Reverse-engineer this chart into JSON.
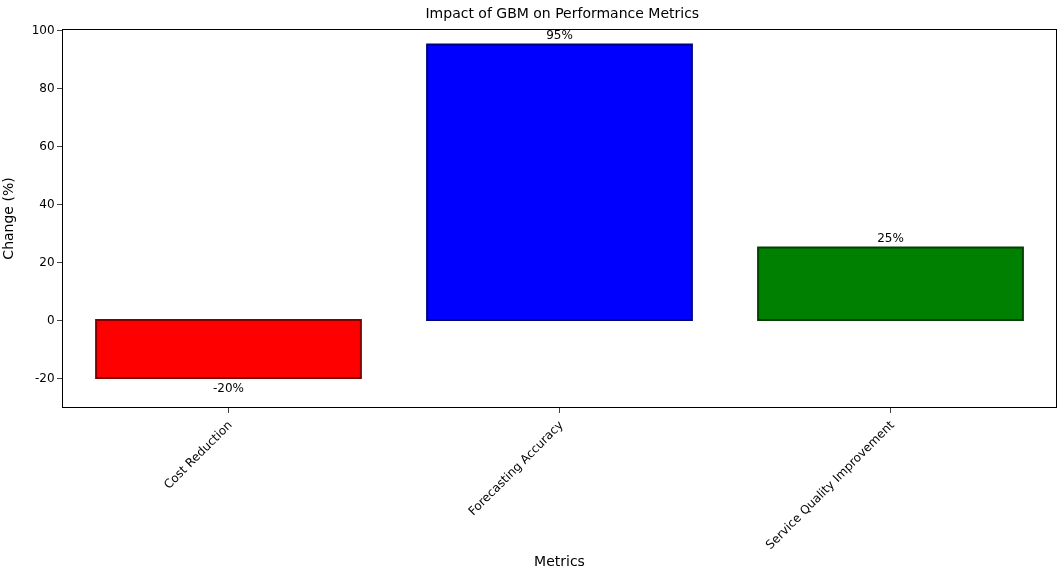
{
  "chart_data": {
    "type": "bar",
    "title": "Impact of GBM on Performance Metrics",
    "xlabel": "Metrics",
    "ylabel": "Change (%)",
    "categories": [
      "Cost Reduction",
      "Forecasting Accuracy",
      "Service Quality Improvement"
    ],
    "values": [
      -20,
      95,
      25
    ],
    "colors": [
      "#ff0000",
      "#0000ff",
      "#008000"
    ],
    "value_labels": [
      "-20%",
      "95%",
      "25%"
    ],
    "ylim": [
      -30,
      100
    ],
    "yticks": [
      -20,
      0,
      20,
      40,
      60,
      80,
      100
    ]
  }
}
